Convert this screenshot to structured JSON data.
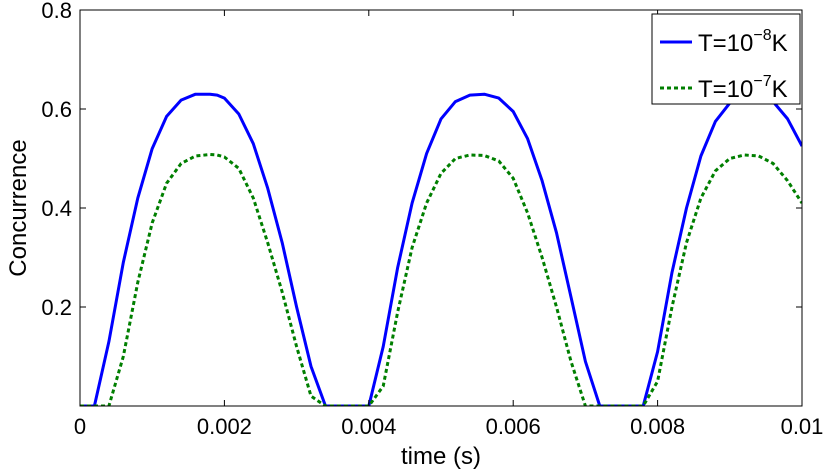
{
  "chart_data": {
    "type": "line",
    "title": "",
    "xlabel": "time (s)",
    "ylabel": "Concurrence",
    "xlim": [
      0,
      0.01
    ],
    "ylim": [
      0,
      0.8
    ],
    "xticks": [
      0,
      0.002,
      0.004,
      0.006,
      0.008,
      0.01
    ],
    "xtick_labels": [
      "0",
      "0.002",
      "0.004",
      "0.006",
      "0.008",
      "0.01"
    ],
    "yticks": [
      0.2,
      0.4,
      0.6,
      0.8
    ],
    "ytick_labels": [
      "0.2",
      "0.4",
      "0.6",
      "0.8"
    ],
    "grid": false,
    "legend_position": "top-right",
    "series": [
      {
        "name": "T=10^-8 K",
        "legend": {
          "base": "T=10",
          "exp": "−8",
          "unit": "K"
        },
        "color": "#0000ff",
        "style": "solid",
        "x": [
          0,
          0.0002,
          0.0004,
          0.0006,
          0.0008,
          0.001,
          0.0012,
          0.0014,
          0.0016,
          0.0018,
          0.0019,
          0.002,
          0.0022,
          0.0024,
          0.0026,
          0.0028,
          0.003,
          0.0032,
          0.0034,
          0.0035,
          0.0036,
          0.0038,
          0.004,
          0.0042,
          0.0044,
          0.0046,
          0.0048,
          0.005,
          0.0052,
          0.0054,
          0.0056,
          0.0058,
          0.006,
          0.0062,
          0.0064,
          0.0066,
          0.0068,
          0.007,
          0.0072,
          0.0074,
          0.0076,
          0.0078,
          0.008,
          0.0082,
          0.0084,
          0.0086,
          0.0088,
          0.009,
          0.0092,
          0.0094,
          0.0096,
          0.0098,
          0.01
        ],
        "y": [
          0,
          0.0,
          0.13,
          0.29,
          0.42,
          0.52,
          0.585,
          0.618,
          0.63,
          0.63,
          0.628,
          0.622,
          0.59,
          0.53,
          0.44,
          0.33,
          0.2,
          0.08,
          0.0,
          0,
          0,
          0,
          0,
          0.12,
          0.28,
          0.41,
          0.51,
          0.58,
          0.615,
          0.628,
          0.63,
          0.622,
          0.595,
          0.54,
          0.455,
          0.35,
          0.22,
          0.09,
          0.0,
          0,
          0,
          0,
          0.11,
          0.27,
          0.4,
          0.505,
          0.575,
          0.612,
          0.628,
          0.63,
          0.615,
          0.58,
          0.525
        ]
      },
      {
        "name": "T=10^-7 K",
        "legend": {
          "base": "T=10",
          "exp": "−7",
          "unit": "K"
        },
        "color": "#007f00",
        "style": "dotted",
        "x": [
          0,
          0.0002,
          0.0004,
          0.0006,
          0.0008,
          0.001,
          0.0012,
          0.0014,
          0.0016,
          0.0018,
          0.0019,
          0.002,
          0.0022,
          0.0024,
          0.0026,
          0.0028,
          0.003,
          0.0032,
          0.0034,
          0.0035,
          0.0036,
          0.0038,
          0.004,
          0.0042,
          0.0044,
          0.0046,
          0.0048,
          0.005,
          0.0052,
          0.0054,
          0.0056,
          0.0058,
          0.006,
          0.0062,
          0.0064,
          0.0066,
          0.0068,
          0.007,
          0.0072,
          0.0074,
          0.0076,
          0.0078,
          0.008,
          0.0082,
          0.0084,
          0.0086,
          0.0088,
          0.009,
          0.0092,
          0.0094,
          0.0096,
          0.0098,
          0.01
        ],
        "y": [
          0,
          0,
          0.0,
          0.1,
          0.25,
          0.37,
          0.45,
          0.49,
          0.505,
          0.508,
          0.507,
          0.503,
          0.48,
          0.42,
          0.33,
          0.23,
          0.12,
          0.02,
          0.0,
          0,
          0,
          0,
          0,
          0.04,
          0.19,
          0.32,
          0.41,
          0.47,
          0.5,
          0.507,
          0.506,
          0.495,
          0.46,
          0.39,
          0.3,
          0.2,
          0.09,
          0.0,
          0.0,
          0,
          0,
          0,
          0.05,
          0.2,
          0.33,
          0.42,
          0.475,
          0.5,
          0.507,
          0.505,
          0.49,
          0.455,
          0.41
        ]
      }
    ]
  }
}
